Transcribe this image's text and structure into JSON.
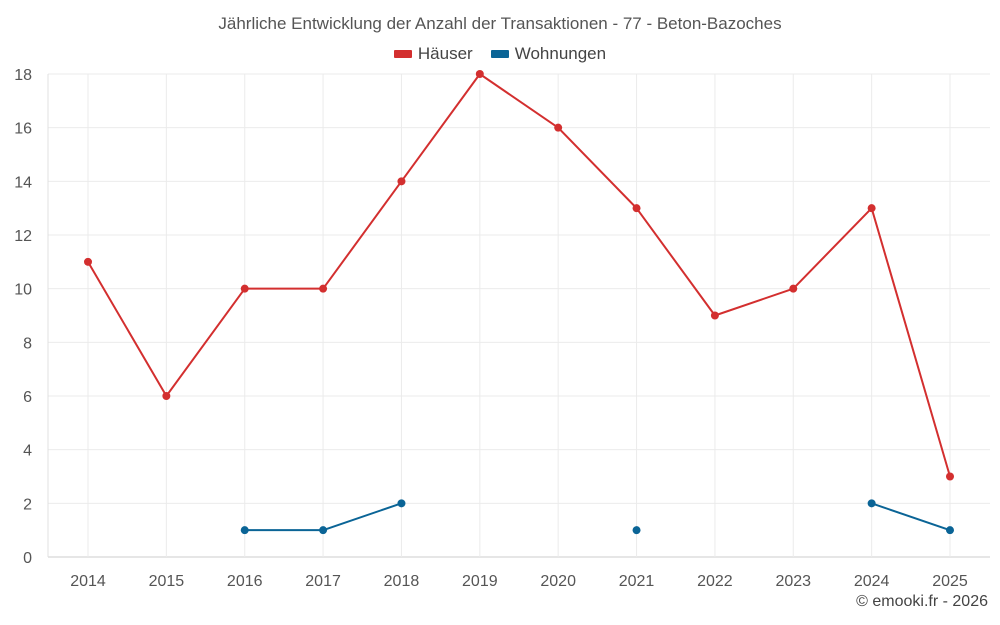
{
  "title": "Jährliche Entwicklung der Anzahl der Transaktionen - 77 - Beton-Bazoches",
  "credit": "© emooki.fr - 2026",
  "chart_data": {
    "type": "line",
    "title": "Jährliche Entwicklung der Anzahl der Transaktionen - 77 - Beton-Bazoches",
    "xlabel": "",
    "ylabel": "",
    "categories": [
      "2014",
      "2015",
      "2016",
      "2017",
      "2018",
      "2019",
      "2020",
      "2021",
      "2022",
      "2023",
      "2024",
      "2025"
    ],
    "ylim": [
      0,
      18
    ],
    "yticks": [
      0,
      2,
      4,
      6,
      8,
      10,
      12,
      14,
      16,
      18
    ],
    "grid": true,
    "legend_position": "top-center",
    "series": [
      {
        "name": "Häuser",
        "color": "#d32f2f",
        "values": [
          11,
          6,
          10,
          10,
          14,
          18,
          16,
          13,
          9,
          10,
          13,
          3
        ]
      },
      {
        "name": "Wohnungen",
        "color": "#0a6496",
        "values": [
          null,
          null,
          1,
          1,
          2,
          null,
          null,
          1,
          null,
          null,
          2,
          1
        ]
      }
    ]
  }
}
